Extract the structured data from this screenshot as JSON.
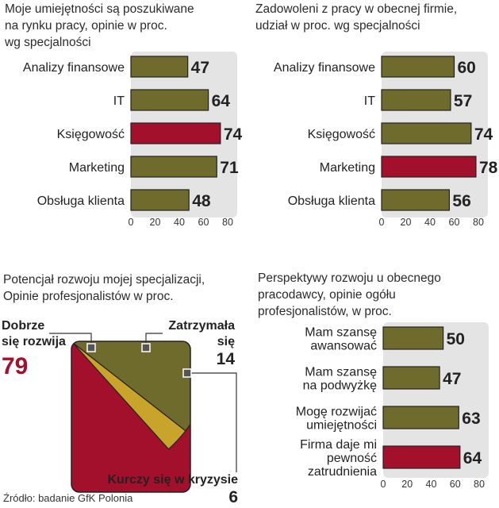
{
  "colors": {
    "olive": "#6f6b2c",
    "red": "#a3102c",
    "gold": "#c8a42a",
    "track": "#e4e4e4",
    "dark": "#222222"
  },
  "charts": [
    {
      "title": "Moje umiejętności są poszukiwane\nna rynku pracy, opinie w proc.\nwg specjalności"
    },
    {
      "title": "Zadowoleni z pracy w obecnej firmie,\nudział w proc. wg specjalności"
    },
    {
      "title": "Potencjał rozwoju mojej specjalizacji,\nOpinie profesjonalistów w proc."
    },
    {
      "title": "Perspektywy rozwoju u obecnego\npracodawcy, opinie ogółu\nprofesjonalistów, w proc."
    }
  ],
  "chart_data": [
    {
      "type": "bar",
      "orientation": "horizontal",
      "title": "Moje umiejętności są poszukiwane na rynku pracy, opinie w proc. wg specjalności",
      "categories": [
        "Analizy finansowe",
        "IT",
        "Księgowość",
        "Marketing",
        "Obsługa klienta"
      ],
      "values": [
        47,
        64,
        74,
        71,
        48
      ],
      "highlight": [
        false,
        false,
        true,
        false,
        false
      ],
      "xlim": [
        0,
        80
      ],
      "ticks": [
        0,
        20,
        40,
        60,
        80
      ]
    },
    {
      "type": "bar",
      "orientation": "horizontal",
      "title": "Zadowoleni z pracy w obecnej firmie, udział w proc. wg specjalności",
      "categories": [
        "Analizy finansowe",
        "IT",
        "Księgowość",
        "Marketing",
        "Obsługa klienta"
      ],
      "values": [
        60,
        57,
        74,
        78,
        56
      ],
      "highlight": [
        false,
        false,
        false,
        true,
        false
      ],
      "xlim": [
        0,
        80
      ],
      "ticks": [
        0,
        20,
        40,
        60,
        80
      ]
    },
    {
      "type": "pie",
      "title": "Potencjał rozwoju mojej specjalizacji, Opinie profesjonalistów w proc.",
      "slices": [
        {
          "label": "Dobrze się rozwija",
          "value": 79,
          "color": "#a3102c"
        },
        {
          "label": "Zatrzymała się",
          "value": 14,
          "color": "#6f6b2c"
        },
        {
          "label": "Kurczy się w kryzysie",
          "value": 6,
          "color": "#c8a42a"
        }
      ]
    },
    {
      "type": "bar",
      "orientation": "horizontal",
      "title": "Perspektywy rozwoju u obecnego pracodawcy, opinie ogółu profesjonalistów, w proc.",
      "categories": [
        "Mam szansę\nawansować",
        "Mam szansę\nna podwyżkę",
        "Mogę rozwijać\numiejętności",
        "Firma daje mi\npewność\nzatrudnienia"
      ],
      "values": [
        50,
        47,
        63,
        64
      ],
      "highlight": [
        false,
        false,
        false,
        true
      ],
      "xlim": [
        0,
        80
      ],
      "ticks": [
        0,
        20,
        40,
        60,
        80
      ]
    }
  ],
  "pie_labels": {
    "good_label": "Dobrze\nsię rozwija",
    "good_value": "79",
    "stop_label": "Zatrzymała\nsię",
    "stop_value": "14",
    "shrink_label": "Kurczy się w kryzysie",
    "shrink_value": "6"
  },
  "source": "Źródło: badanie  GfK Polonia"
}
